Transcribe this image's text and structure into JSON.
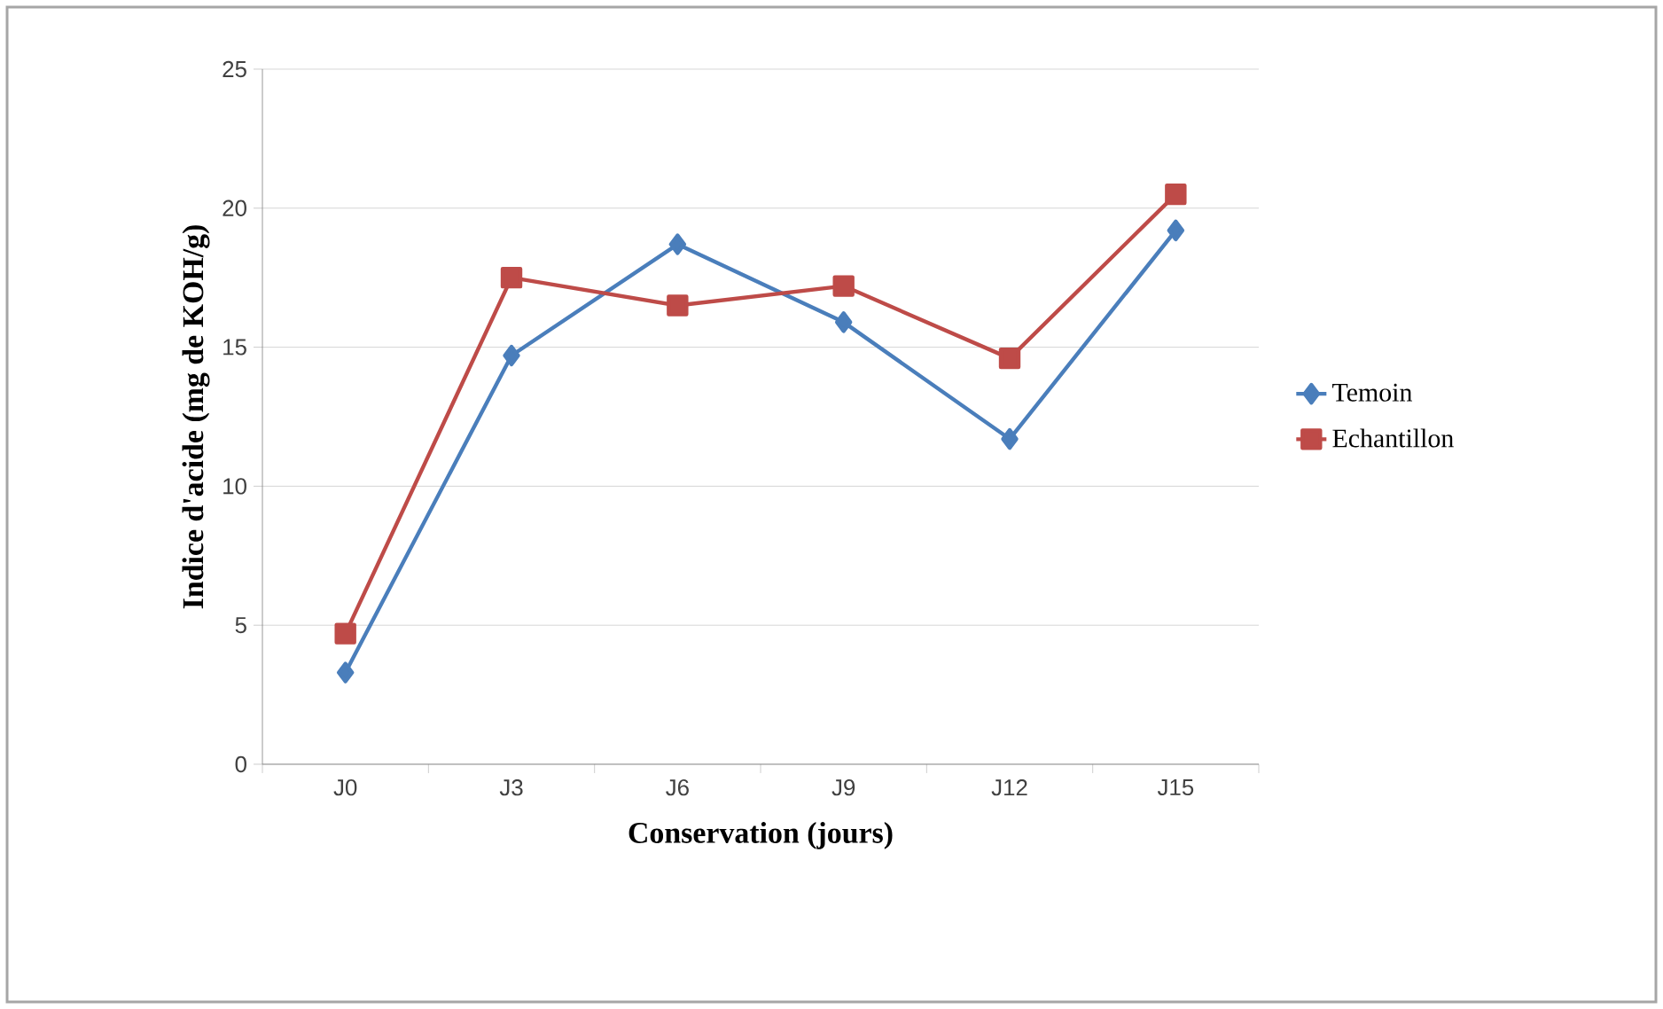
{
  "chart_data": {
    "type": "line",
    "xlabel": "Conservation (jours)",
    "ylabel": "Indice d'acide (mg de KOH/g)",
    "categories": [
      "J0",
      "J3",
      "J6",
      "J9",
      "J12",
      "J15"
    ],
    "series": [
      {
        "name": "Temoin",
        "color": "#4a7ebb",
        "marker": "diamond",
        "values": [
          3.3,
          14.7,
          18.7,
          15.9,
          11.7,
          19.2
        ]
      },
      {
        "name": "Echantillon",
        "color": "#be4b48",
        "marker": "square",
        "values": [
          4.7,
          17.5,
          16.5,
          17.2,
          14.6,
          20.5
        ]
      }
    ],
    "ylim": [
      0,
      25
    ],
    "yticks": [
      0,
      5,
      10,
      15,
      20,
      25
    ],
    "grid": "y",
    "legend": "right",
    "line_style": "solid"
  }
}
